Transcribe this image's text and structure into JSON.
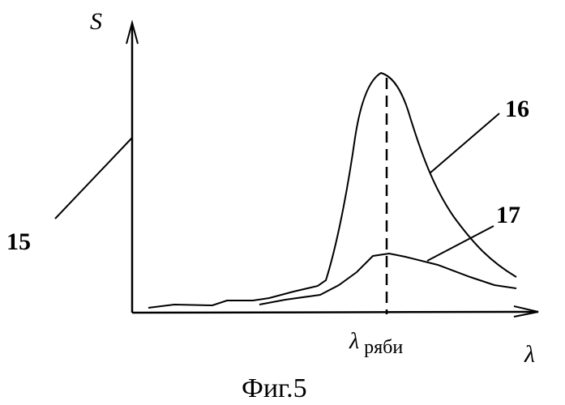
{
  "axes": {
    "y_label": "S",
    "x_label": "λ"
  },
  "marker": {
    "symbol": "λ",
    "subscript": "ряби"
  },
  "callouts": {
    "axis": "15",
    "curve_high": "16",
    "curve_low": "17"
  },
  "caption": "Фиг.5"
}
